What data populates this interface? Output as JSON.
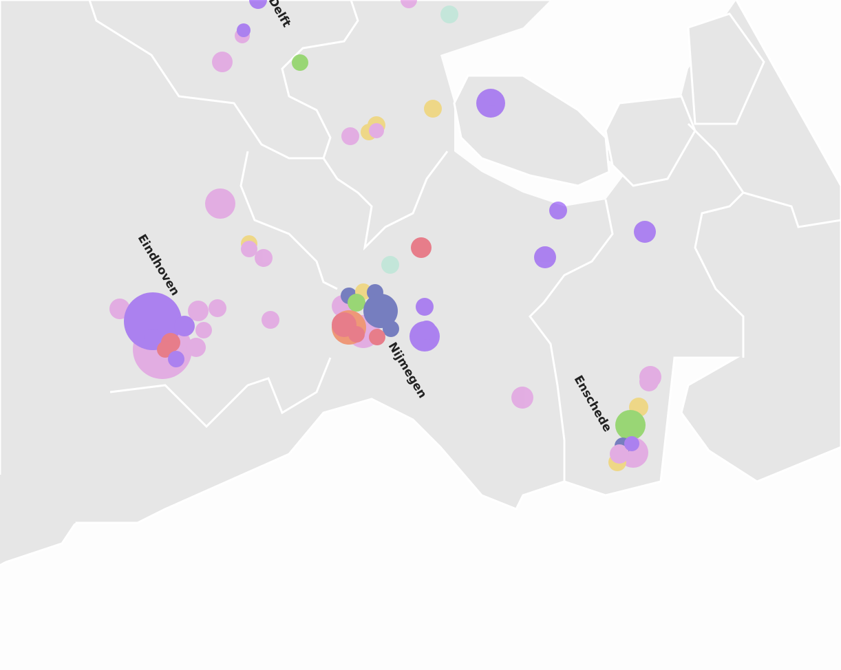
{
  "labels": {
    "delft": "Delft",
    "eindhoven": "Eindhoven",
    "nijmegen": "Nijmegen",
    "enschede": "Enschede"
  }
}
